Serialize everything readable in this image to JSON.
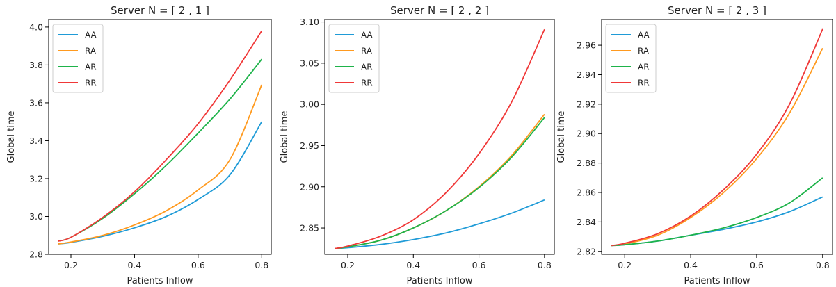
{
  "chart_data": [
    {
      "type": "line",
      "title": "Server N = [ 2 , 1 ]",
      "xlabel": "Patients Inflow",
      "ylabel": "Global time",
      "xlim": [
        0.13,
        0.83
      ],
      "ylim": [
        2.8,
        4.04
      ],
      "xticks": [
        0.2,
        0.4,
        0.6,
        0.8
      ],
      "xtick_labels": [
        "0.2",
        "0.4",
        "0.6",
        "0.8"
      ],
      "yticks": [
        2.8,
        3.0,
        3.2,
        3.4,
        3.6,
        3.8,
        4.0
      ],
      "ytick_labels": [
        "2.8",
        "3.0",
        "3.2",
        "3.4",
        "3.6",
        "3.8",
        "4.0"
      ],
      "legend_position": "upper-left",
      "grid": false,
      "x": [
        0.16,
        0.2,
        0.3,
        0.4,
        0.5,
        0.6,
        0.7,
        0.8
      ],
      "series": [
        {
          "name": "AA",
          "color": "#1f9bd7",
          "values": [
            2.855,
            2.863,
            2.895,
            2.94,
            3.0,
            3.09,
            3.22,
            3.5
          ]
        },
        {
          "name": "RA",
          "color": "#ff9a1f",
          "values": [
            2.855,
            2.865,
            2.9,
            2.955,
            3.03,
            3.14,
            3.3,
            3.695
          ]
        },
        {
          "name": "AR",
          "color": "#1eb34a",
          "values": [
            2.87,
            2.89,
            2.99,
            3.12,
            3.27,
            3.44,
            3.62,
            3.83
          ]
        },
        {
          "name": "RR",
          "color": "#f03838",
          "values": [
            2.87,
            2.89,
            2.995,
            3.13,
            3.3,
            3.49,
            3.72,
            3.98
          ]
        }
      ]
    },
    {
      "type": "line",
      "title": "Server N = [ 2 , 2 ]",
      "xlabel": "Patients Inflow",
      "ylabel": "Global time",
      "xlim": [
        0.13,
        0.83
      ],
      "ylim": [
        2.818,
        3.103
      ],
      "xticks": [
        0.2,
        0.4,
        0.6,
        0.8
      ],
      "xtick_labels": [
        "0.2",
        "0.4",
        "0.6",
        "0.8"
      ],
      "yticks": [
        2.85,
        2.9,
        2.95,
        3.0,
        3.05,
        3.1
      ],
      "ytick_labels": [
        "2.85",
        "2.90",
        "2.95",
        "3.00",
        "3.05",
        "3.10"
      ],
      "legend_position": "upper-left",
      "grid": false,
      "x": [
        0.16,
        0.2,
        0.3,
        0.4,
        0.5,
        0.6,
        0.7,
        0.8
      ],
      "series": [
        {
          "name": "AA",
          "color": "#1f9bd7",
          "values": [
            2.825,
            2.826,
            2.83,
            2.836,
            2.844,
            2.855,
            2.868,
            2.884
          ]
        },
        {
          "name": "RA",
          "color": "#ff9a1f",
          "values": [
            2.825,
            2.827,
            2.835,
            2.85,
            2.871,
            2.9,
            2.938,
            2.988
          ]
        },
        {
          "name": "AR",
          "color": "#1eb34a",
          "values": [
            2.825,
            2.827,
            2.835,
            2.85,
            2.871,
            2.899,
            2.936,
            2.984
          ]
        },
        {
          "name": "RR",
          "color": "#f03838",
          "values": [
            2.825,
            2.828,
            2.84,
            2.86,
            2.893,
            2.94,
            3.003,
            3.091
          ]
        }
      ]
    },
    {
      "type": "line",
      "title": "Server N = [ 2 , 3 ]",
      "xlabel": "Patients Inflow",
      "ylabel": "Global time",
      "xlim": [
        0.13,
        0.83
      ],
      "ylim": [
        2.818,
        2.9775
      ],
      "xticks": [
        0.2,
        0.4,
        0.6,
        0.8
      ],
      "xtick_labels": [
        "0.2",
        "0.4",
        "0.6",
        "0.8"
      ],
      "yticks": [
        2.82,
        2.84,
        2.86,
        2.88,
        2.9,
        2.92,
        2.94,
        2.96
      ],
      "ytick_labels": [
        "2.82",
        "2.84",
        "2.86",
        "2.88",
        "2.90",
        "2.92",
        "2.94",
        "2.96"
      ],
      "legend_position": "upper-left",
      "grid": false,
      "x": [
        0.16,
        0.2,
        0.3,
        0.4,
        0.5,
        0.6,
        0.7,
        0.8
      ],
      "series": [
        {
          "name": "AA",
          "color": "#1f9bd7",
          "values": [
            2.824,
            2.8245,
            2.827,
            2.831,
            2.835,
            2.84,
            2.847,
            2.857
          ]
        },
        {
          "name": "RA",
          "color": "#ff9a1f",
          "values": [
            2.824,
            2.825,
            2.831,
            2.843,
            2.86,
            2.883,
            2.914,
            2.958
          ]
        },
        {
          "name": "AR",
          "color": "#1eb34a",
          "values": [
            2.824,
            2.8245,
            2.827,
            2.831,
            2.836,
            2.843,
            2.853,
            2.87
          ]
        },
        {
          "name": "RR",
          "color": "#f03838",
          "values": [
            2.824,
            2.8255,
            2.832,
            2.844,
            2.862,
            2.886,
            2.92,
            2.971
          ]
        }
      ]
    }
  ]
}
